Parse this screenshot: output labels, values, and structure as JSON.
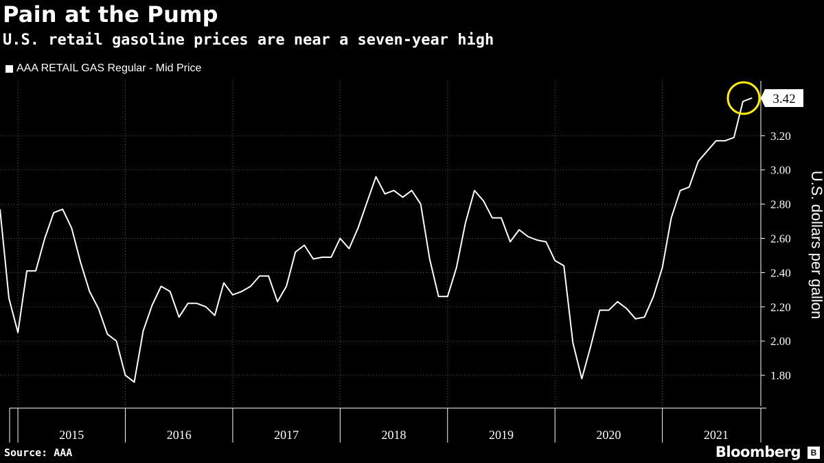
{
  "title": "Pain at the Pump",
  "subtitle": "U.S. retail gasoline prices are near a seven-year high",
  "legend": "AAA RETAIL GAS  Regular - Mid Price",
  "source": "Source: AAA",
  "brand": "Bloomberg",
  "colors": {
    "background": "#000000",
    "line": "#ffffff",
    "highlight": "#ffee00",
    "grid": "#555555"
  },
  "chart_data": {
    "type": "line",
    "title": "Pain at the Pump",
    "subtitle": "U.S. retail gasoline prices are near a seven-year high",
    "xlabel": "",
    "ylabel": "U.S. dollars per gallon",
    "ylim": [
      1.62,
      3.52
    ],
    "yticks": [
      1.8,
      2.0,
      2.2,
      2.4,
      2.6,
      2.8,
      3.0,
      3.2
    ],
    "ytick_labels": [
      "1.80",
      "2.00",
      "2.20",
      "2.40",
      "2.60",
      "2.80",
      "3.00",
      "3.20"
    ],
    "xlim": [
      "2014-11",
      "2021-12"
    ],
    "years": [
      "2015",
      "2016",
      "2017",
      "2018",
      "2019",
      "2020",
      "2021"
    ],
    "grid": true,
    "legend_position": "top-left",
    "last_value_label": "3.42",
    "series": [
      {
        "name": "AAA RETAIL GAS  Regular - Mid Price",
        "x": [
          "2014-11",
          "2014-12",
          "2015-01",
          "2015-02",
          "2015-03",
          "2015-04",
          "2015-05",
          "2015-06",
          "2015-07",
          "2015-08",
          "2015-09",
          "2015-10",
          "2015-11",
          "2015-12",
          "2016-01",
          "2016-02",
          "2016-03",
          "2016-04",
          "2016-05",
          "2016-06",
          "2016-07",
          "2016-08",
          "2016-09",
          "2016-10",
          "2016-11",
          "2016-12",
          "2017-01",
          "2017-02",
          "2017-03",
          "2017-04",
          "2017-05",
          "2017-06",
          "2017-07",
          "2017-08",
          "2017-09",
          "2017-10",
          "2017-11",
          "2017-12",
          "2018-01",
          "2018-02",
          "2018-03",
          "2018-04",
          "2018-05",
          "2018-06",
          "2018-07",
          "2018-08",
          "2018-09",
          "2018-10",
          "2018-11",
          "2018-12",
          "2019-01",
          "2019-02",
          "2019-03",
          "2019-04",
          "2019-05",
          "2019-06",
          "2019-07",
          "2019-08",
          "2019-09",
          "2019-10",
          "2019-11",
          "2019-12",
          "2020-01",
          "2020-02",
          "2020-03",
          "2020-04",
          "2020-05",
          "2020-06",
          "2020-07",
          "2020-08",
          "2020-09",
          "2020-10",
          "2020-11",
          "2020-12",
          "2021-01",
          "2021-02",
          "2021-03",
          "2021-04",
          "2021-05",
          "2021-06",
          "2021-07",
          "2021-08",
          "2021-09",
          "2021-10",
          "2021-11"
        ],
        "values": [
          2.77,
          2.25,
          2.05,
          2.41,
          2.41,
          2.6,
          2.75,
          2.77,
          2.66,
          2.46,
          2.29,
          2.19,
          2.04,
          2.0,
          1.8,
          1.76,
          2.06,
          2.21,
          2.32,
          2.29,
          2.14,
          2.22,
          2.22,
          2.2,
          2.15,
          2.34,
          2.27,
          2.29,
          2.32,
          2.38,
          2.38,
          2.23,
          2.32,
          2.52,
          2.56,
          2.48,
          2.49,
          2.49,
          2.6,
          2.54,
          2.66,
          2.81,
          2.96,
          2.86,
          2.88,
          2.84,
          2.88,
          2.8,
          2.48,
          2.26,
          2.26,
          2.43,
          2.69,
          2.88,
          2.82,
          2.72,
          2.72,
          2.58,
          2.65,
          2.61,
          2.59,
          2.58,
          2.47,
          2.44,
          1.99,
          1.78,
          1.97,
          2.18,
          2.18,
          2.23,
          2.19,
          2.13,
          2.14,
          2.26,
          2.43,
          2.72,
          2.88,
          2.9,
          3.05,
          3.11,
          3.17,
          3.17,
          3.19,
          3.4,
          3.42
        ]
      }
    ]
  }
}
